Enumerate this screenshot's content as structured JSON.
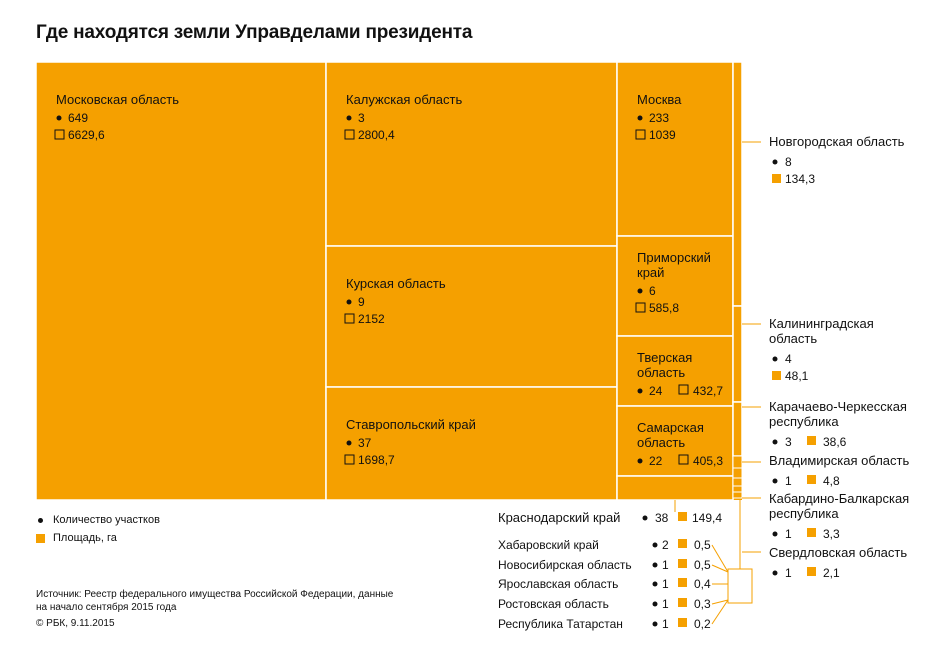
{
  "title": "Где находятся земли Управделами президента",
  "legend": {
    "count_label": "Количество участков",
    "area_label": "Площадь, га"
  },
  "source": "Источник: Реестр федерального имущества Российской Федерации, данные на начало сентября 2015 года",
  "copyright": "© РБК, 9.11.2015",
  "colors": {
    "fill": "#f5a000",
    "border": "#ffffff",
    "text": "#111111",
    "leader": "#f5a000"
  },
  "chart_data": {
    "type": "treemap",
    "measures": [
      "count",
      "area"
    ],
    "regions": [
      {
        "name": "Московская область",
        "count": 649,
        "area": "6629,6"
      },
      {
        "name": "Калужская область",
        "count": 3,
        "area": "2800,4"
      },
      {
        "name": "Курская область",
        "count": 9,
        "area": "2152"
      },
      {
        "name": "Ставропольский край",
        "count": 37,
        "area": "1698,7"
      },
      {
        "name": "Москва",
        "count": 233,
        "area": "1039"
      },
      {
        "name": "Приморский край",
        "count": 6,
        "area": "585,8"
      },
      {
        "name": "Тверская область",
        "count": 24,
        "area": "432,7"
      },
      {
        "name": "Самарская область",
        "count": 22,
        "area": "405,3"
      },
      {
        "name": "Краснодарский край",
        "count": 38,
        "area": "149,4"
      },
      {
        "name": "Новгородская область",
        "count": 8,
        "area": "134,3"
      },
      {
        "name": "Калининградская область",
        "count": 4,
        "area": "48,1"
      },
      {
        "name": "Карачаево-Черкесская республика",
        "count": 3,
        "area": "38,6"
      },
      {
        "name": "Владимирская область",
        "count": 1,
        "area": "4,8"
      },
      {
        "name": "Кабардино-Балкарская республика",
        "count": 1,
        "area": "3,3"
      },
      {
        "name": "Свердловская область",
        "count": 1,
        "area": "2,1"
      },
      {
        "name": "Хабаровский край",
        "count": 2,
        "area": "0,5"
      },
      {
        "name": "Новосибирская область",
        "count": 1,
        "area": "0,5"
      },
      {
        "name": "Ярославская область",
        "count": 1,
        "area": "0,4"
      },
      {
        "name": "Ростовская область",
        "count": 1,
        "area": "0,3"
      },
      {
        "name": "Республика Татарстан",
        "count": 1,
        "area": "0,2"
      }
    ]
  }
}
